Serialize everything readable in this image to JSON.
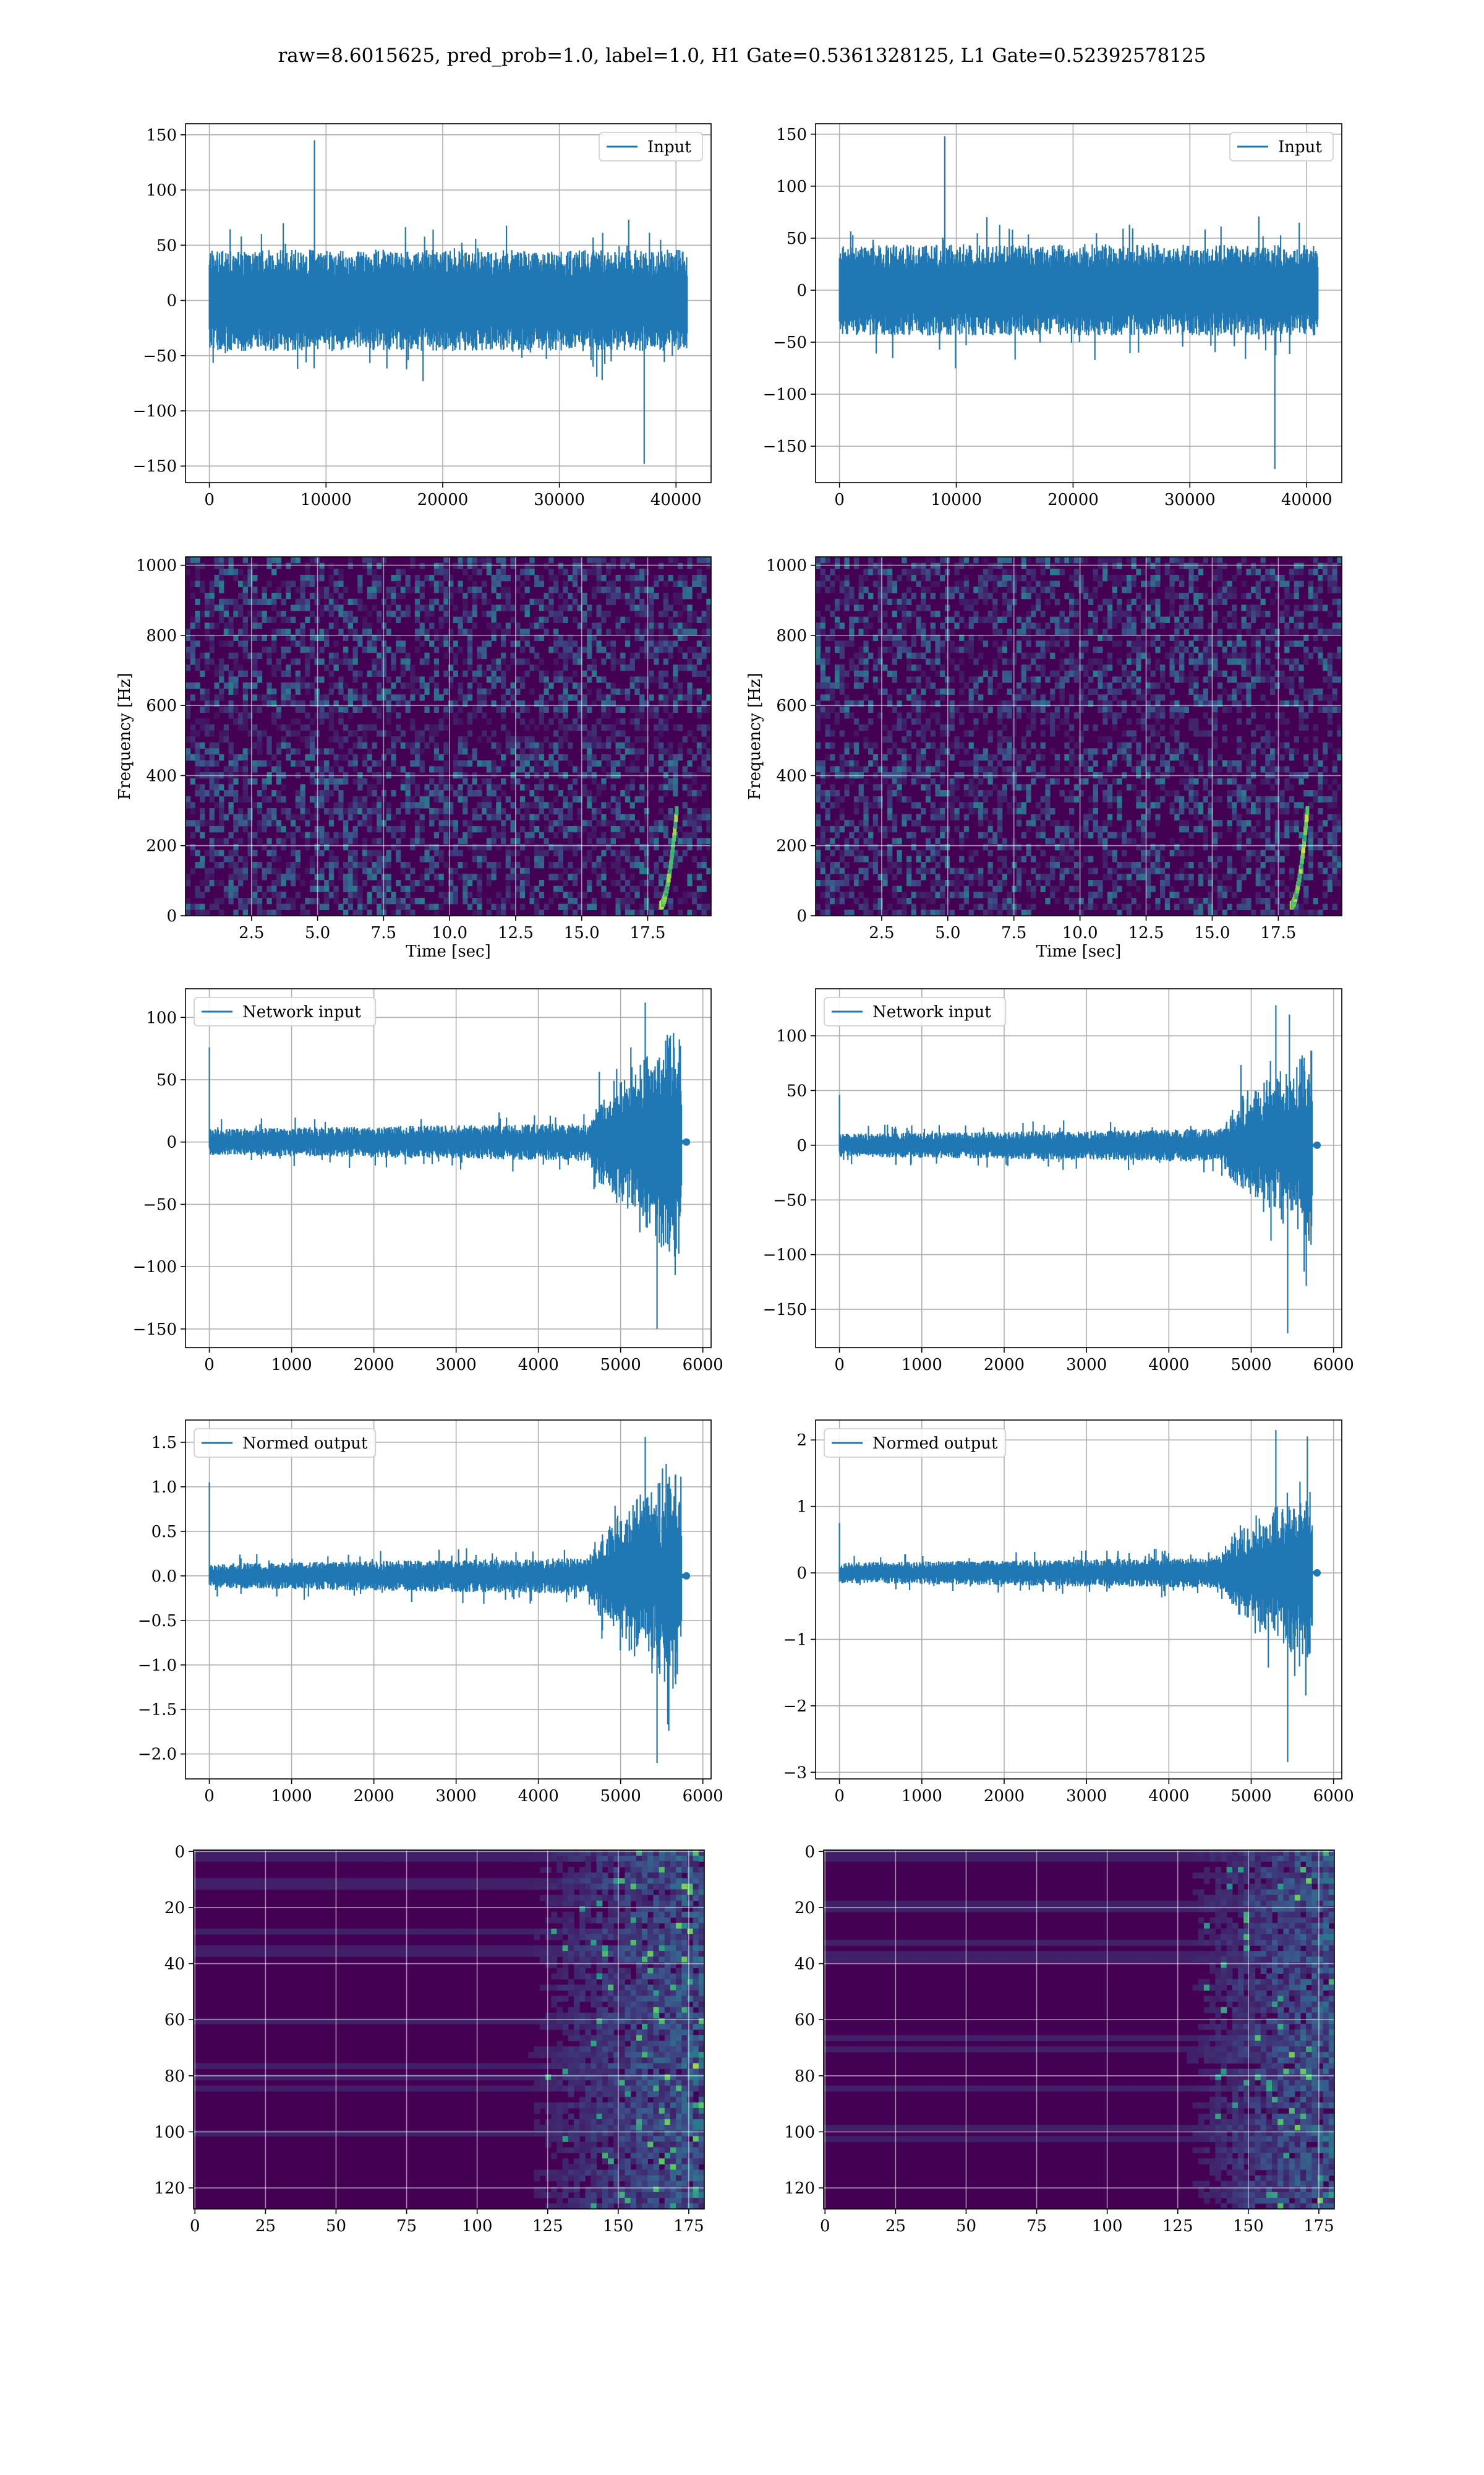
{
  "figure_title": "raw=8.6015625, pred_prob=1.0, label=1.0, H1 Gate=0.5361328125, L1 Gate=0.52392578125",
  "colors": {
    "line": "#1f77b4",
    "viridis_low": "#440154",
    "viridis_high": "#fde725"
  },
  "chart_data": [
    {
      "id": "input-h1",
      "type": "line",
      "title": "",
      "series": [
        {
          "name": "Input",
          "style": "noise",
          "n": 40960,
          "amp": 40,
          "peak_max": 145,
          "peak_min": -148
        }
      ],
      "xlim": [
        -2048,
        43008
      ],
      "ylim": [
        -165,
        160
      ],
      "xticks": [
        0,
        10000,
        20000,
        30000,
        40000
      ],
      "yticks": [
        -150,
        -100,
        -50,
        0,
        50,
        100,
        150
      ],
      "xlabel": "",
      "ylabel": "",
      "legend": "upper right",
      "grid": true
    },
    {
      "id": "input-l1",
      "type": "line",
      "title": "",
      "series": [
        {
          "name": "Input",
          "style": "noise",
          "n": 40960,
          "amp": 38,
          "peak_max": 148,
          "peak_min": -172
        }
      ],
      "xlim": [
        -2048,
        43008
      ],
      "ylim": [
        -185,
        160
      ],
      "xticks": [
        0,
        10000,
        20000,
        30000,
        40000
      ],
      "yticks": [
        -150,
        -100,
        -50,
        0,
        50,
        100,
        150
      ],
      "xlabel": "",
      "ylabel": "",
      "legend": "upper right",
      "grid": true
    },
    {
      "id": "spectrogram-h1",
      "type": "heatmap",
      "title": "",
      "xlim": [
        0,
        19.9
      ],
      "ylim": [
        0,
        1024
      ],
      "xticks": [
        2.5,
        5.0,
        7.5,
        10.0,
        12.5,
        15.0,
        17.5
      ],
      "yticks": [
        0,
        200,
        400,
        600,
        800,
        1000
      ],
      "xlabel": "Time [sec]",
      "ylabel": "Frequency [Hz]",
      "colormap": "viridis",
      "grid": true,
      "chirp": {
        "t_start": 18.0,
        "t_end": 18.6,
        "f_start": 30,
        "f_end": 300
      }
    },
    {
      "id": "spectrogram-l1",
      "type": "heatmap",
      "title": "",
      "xlim": [
        0,
        19.9
      ],
      "ylim": [
        0,
        1024
      ],
      "xticks": [
        2.5,
        5.0,
        7.5,
        10.0,
        12.5,
        15.0,
        17.5
      ],
      "yticks": [
        0,
        200,
        400,
        600,
        800,
        1000
      ],
      "xlabel": "Time [sec]",
      "ylabel": "Frequency [Hz]",
      "colormap": "viridis",
      "grid": true,
      "chirp": {
        "t_start": 18.0,
        "t_end": 18.6,
        "f_start": 30,
        "f_end": 300
      }
    },
    {
      "id": "network-input-h1",
      "type": "line",
      "title": "",
      "series": [
        {
          "name": "Network input",
          "style": "chirp",
          "n": 5760,
          "base": 12,
          "burst_start": 4600,
          "burst_end": 5740,
          "burst_amp": 85,
          "peak_max": 112,
          "peak_min": -150,
          "first": 76
        }
      ],
      "xlim": [
        -290,
        6100
      ],
      "ylim": [
        -165,
        123
      ],
      "xticks": [
        0,
        1000,
        2000,
        3000,
        4000,
        5000,
        6000
      ],
      "yticks": [
        -150,
        -100,
        -50,
        0,
        50,
        100
      ],
      "xlabel": "",
      "ylabel": "",
      "legend": "upper left",
      "grid": true
    },
    {
      "id": "network-input-l1",
      "type": "line",
      "title": "",
      "series": [
        {
          "name": "Network input",
          "style": "chirp",
          "n": 5760,
          "base": 12,
          "burst_start": 4600,
          "burst_end": 5740,
          "burst_amp": 80,
          "peak_max": 128,
          "peak_min": -172,
          "first": 46
        }
      ],
      "xlim": [
        -290,
        6100
      ],
      "ylim": [
        -185,
        143
      ],
      "xticks": [
        0,
        1000,
        2000,
        3000,
        4000,
        5000,
        6000
      ],
      "yticks": [
        -150,
        -100,
        -50,
        0,
        50,
        100
      ],
      "xlabel": "",
      "ylabel": "",
      "legend": "upper left",
      "grid": true
    },
    {
      "id": "normed-output-h1",
      "type": "line",
      "title": "",
      "series": [
        {
          "name": "Normed output",
          "style": "chirp",
          "n": 5760,
          "base": 0.16,
          "burst_start": 4600,
          "burst_end": 5740,
          "burst_amp": 1.15,
          "peak_max": 1.56,
          "peak_min": -2.1,
          "first": 1.05
        }
      ],
      "xlim": [
        -290,
        6100
      ],
      "ylim": [
        -2.28,
        1.75
      ],
      "xticks": [
        0,
        1000,
        2000,
        3000,
        4000,
        5000,
        6000
      ],
      "yticks": [
        -2.0,
        -1.5,
        -1.0,
        -0.5,
        0.0,
        0.5,
        1.0,
        1.5
      ],
      "xlabel": "",
      "ylabel": "",
      "legend": "upper left",
      "grid": true
    },
    {
      "id": "normed-output-l1",
      "type": "line",
      "title": "",
      "series": [
        {
          "name": "Normed output",
          "style": "chirp",
          "n": 5760,
          "base": 0.18,
          "burst_start": 4600,
          "burst_end": 5740,
          "burst_amp": 1.3,
          "peak_max": 2.15,
          "peak_min": -2.85,
          "first": 0.75
        }
      ],
      "xlim": [
        -290,
        6100
      ],
      "ylim": [
        -3.1,
        2.3
      ],
      "xticks": [
        0,
        1000,
        2000,
        3000,
        4000,
        5000,
        6000
      ],
      "yticks": [
        -3,
        -2,
        -1,
        0,
        1,
        2
      ],
      "xlabel": "",
      "ylabel": "",
      "legend": "upper left",
      "grid": true
    },
    {
      "id": "feature-map-h1",
      "type": "heatmap",
      "title": "",
      "xlim": [
        -0.5,
        180.5
      ],
      "ylim": [
        127.5,
        -0.5
      ],
      "rows": 128,
      "cols": 181,
      "xticks": [
        0,
        25,
        50,
        75,
        100,
        125,
        150,
        175
      ],
      "yticks": [
        0,
        20,
        40,
        60,
        80,
        100,
        120
      ],
      "xlabel": "",
      "ylabel": "",
      "colormap": "viridis",
      "grid": true,
      "active_from": 118
    },
    {
      "id": "feature-map-l1",
      "type": "heatmap",
      "title": "",
      "xlim": [
        -0.5,
        180.5
      ],
      "ylim": [
        127.5,
        -0.5
      ],
      "rows": 128,
      "cols": 181,
      "xticks": [
        0,
        25,
        50,
        75,
        100,
        125,
        150,
        175
      ],
      "yticks": [
        0,
        20,
        40,
        60,
        80,
        100,
        120
      ],
      "xlabel": "",
      "ylabel": "",
      "colormap": "viridis",
      "grid": true,
      "active_from": 128
    }
  ]
}
